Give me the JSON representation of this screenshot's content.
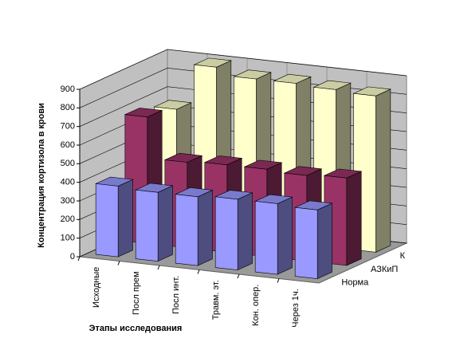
{
  "chart_data": {
    "type": "bar3d",
    "y_label": "Концентрация кортизола в крови",
    "x_label": "Этапы исследования",
    "categories": [
      "Исходные",
      "Посл прем",
      "Посл инт.",
      "Травм. эт.",
      "Кон. опер.",
      "Через 1ч."
    ],
    "series": [
      {
        "name": "Норма",
        "color": "#9999ff",
        "values": [
          380,
          370,
          370,
          380,
          380,
          370
        ]
      },
      {
        "name": "АЗКиП",
        "color": "#993366",
        "values": [
          680,
          460,
          470,
          470,
          460,
          470
        ]
      },
      {
        "name": "К",
        "color": "#ffffcc",
        "values": [
          650,
          900,
          860,
          860,
          850,
          840
        ]
      }
    ],
    "ylim": [
      0,
      900
    ],
    "yticks": [
      0,
      100,
      200,
      300,
      400,
      500,
      600,
      700,
      800,
      900
    ],
    "grid": true
  }
}
